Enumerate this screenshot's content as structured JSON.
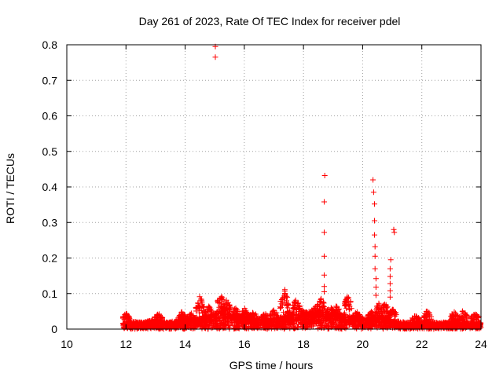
{
  "chart_data": {
    "type": "scatter",
    "title": "Day 261 of 2023, Rate Of TEC Index for receiver pdel",
    "xlabel": "GPS time / hours",
    "ylabel": "ROTI / TECUs",
    "xlim": [
      10,
      24
    ],
    "ylim": [
      0,
      0.8
    ],
    "xticks": [
      "10",
      "12",
      "14",
      "16",
      "18",
      "20",
      "22",
      "24"
    ],
    "yticks": [
      "0",
      "0.1",
      "0.2",
      "0.3",
      "0.4",
      "0.5",
      "0.6",
      "0.7",
      "0.8"
    ],
    "grid": true,
    "marker": "+",
    "color": "#ff0000",
    "data_range_hours": [
      11.9,
      24.0
    ],
    "background_band": [
      [
        11.9,
        0.018
      ],
      [
        12.2,
        0.022
      ],
      [
        12.6,
        0.02
      ],
      [
        13.0,
        0.028
      ],
      [
        13.4,
        0.02
      ],
      [
        13.8,
        0.024
      ],
      [
        14.2,
        0.03
      ],
      [
        14.5,
        0.035
      ],
      [
        14.8,
        0.04
      ],
      [
        15.1,
        0.05
      ],
      [
        15.3,
        0.06
      ],
      [
        15.6,
        0.045
      ],
      [
        16.0,
        0.04
      ],
      [
        16.4,
        0.03
      ],
      [
        16.8,
        0.028
      ],
      [
        17.2,
        0.035
      ],
      [
        17.5,
        0.04
      ],
      [
        17.8,
        0.045
      ],
      [
        18.2,
        0.05
      ],
      [
        18.6,
        0.055
      ],
      [
        19.0,
        0.045
      ],
      [
        19.4,
        0.04
      ],
      [
        19.8,
        0.035
      ],
      [
        20.2,
        0.03
      ],
      [
        20.6,
        0.04
      ],
      [
        21.0,
        0.025
      ],
      [
        21.4,
        0.02
      ],
      [
        21.8,
        0.018
      ],
      [
        22.2,
        0.02
      ],
      [
        22.6,
        0.018
      ],
      [
        23.0,
        0.022
      ],
      [
        23.4,
        0.025
      ],
      [
        23.8,
        0.02
      ],
      [
        24.0,
        0.018
      ]
    ],
    "bursts": [
      [
        12.0,
        0.045
      ],
      [
        13.1,
        0.045
      ],
      [
        13.9,
        0.05
      ],
      [
        14.2,
        0.045
      ],
      [
        14.5,
        0.095
      ],
      [
        14.8,
        0.065
      ],
      [
        15.2,
        0.1
      ],
      [
        15.4,
        0.085
      ],
      [
        15.7,
        0.06
      ],
      [
        16.0,
        0.06
      ],
      [
        16.3,
        0.05
      ],
      [
        16.7,
        0.045
      ],
      [
        17.0,
        0.055
      ],
      [
        17.35,
        0.115
      ],
      [
        17.55,
        0.06
      ],
      [
        17.75,
        0.085
      ],
      [
        18.0,
        0.06
      ],
      [
        18.4,
        0.065
      ],
      [
        18.6,
        0.09
      ],
      [
        18.9,
        0.065
      ],
      [
        19.1,
        0.07
      ],
      [
        19.5,
        0.095
      ],
      [
        19.8,
        0.05
      ],
      [
        20.3,
        0.05
      ],
      [
        20.55,
        0.075
      ],
      [
        20.75,
        0.075
      ],
      [
        21.0,
        0.06
      ],
      [
        21.8,
        0.04
      ],
      [
        22.2,
        0.055
      ],
      [
        23.1,
        0.05
      ],
      [
        23.4,
        0.055
      ],
      [
        23.8,
        0.045
      ]
    ],
    "spikes": [
      [
        15.02,
        0.795
      ],
      [
        15.02,
        0.765
      ],
      [
        18.72,
        0.432
      ],
      [
        18.7,
        0.358
      ],
      [
        18.7,
        0.272
      ],
      [
        18.7,
        0.205
      ],
      [
        18.7,
        0.152
      ],
      [
        18.7,
        0.12
      ],
      [
        18.7,
        0.105
      ],
      [
        20.35,
        0.42
      ],
      [
        20.37,
        0.385
      ],
      [
        20.4,
        0.352
      ],
      [
        20.4,
        0.305
      ],
      [
        20.4,
        0.265
      ],
      [
        20.42,
        0.232
      ],
      [
        20.42,
        0.205
      ],
      [
        20.42,
        0.17
      ],
      [
        20.45,
        0.142
      ],
      [
        20.45,
        0.118
      ],
      [
        20.45,
        0.095
      ],
      [
        21.05,
        0.28
      ],
      [
        21.07,
        0.272
      ],
      [
        20.95,
        0.195
      ],
      [
        20.93,
        0.17
      ],
      [
        20.93,
        0.148
      ],
      [
        20.93,
        0.128
      ],
      [
        20.93,
        0.108
      ],
      [
        20.93,
        0.09
      ]
    ]
  }
}
